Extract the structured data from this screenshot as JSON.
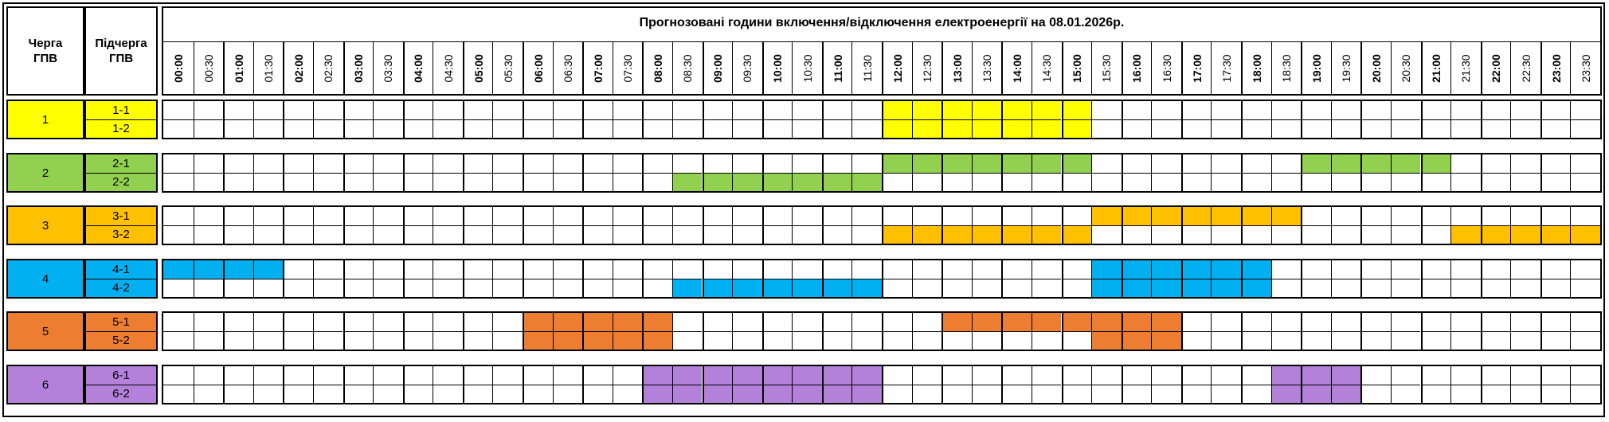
{
  "header": {
    "queue_label": "Черга ГПВ",
    "subqueue_label": "Підчерга ГПВ",
    "title": "Прогнозовані години включення/відключення електроенергії на 08.01.2026р."
  },
  "times": [
    "00:00",
    "00:30",
    "01:00",
    "01:30",
    "02:00",
    "02:30",
    "03:00",
    "03:30",
    "04:00",
    "04:30",
    "05:00",
    "05:30",
    "06:00",
    "06:30",
    "07:00",
    "07:30",
    "08:00",
    "08:30",
    "09:00",
    "09:30",
    "10:00",
    "10:30",
    "11:00",
    "11:30",
    "12:00",
    "12:30",
    "13:00",
    "13:30",
    "14:00",
    "14:30",
    "15:00",
    "15:30",
    "16:00",
    "16:30",
    "17:00",
    "17:30",
    "18:00",
    "18:30",
    "19:00",
    "19:30",
    "20:00",
    "20:30",
    "21:00",
    "21:30",
    "22:00",
    "22:30",
    "23:00",
    "23:30"
  ],
  "groups": [
    {
      "queue": "1",
      "color": "#ffff00",
      "subqueues": [
        {
          "label": "1-1",
          "off_slots": [
            24,
            25,
            26,
            27,
            28,
            29,
            30
          ]
        },
        {
          "label": "1-2",
          "off_slots": [
            24,
            25,
            26,
            27,
            28,
            29,
            30
          ]
        }
      ]
    },
    {
      "queue": "2",
      "color": "#92d050",
      "subqueues": [
        {
          "label": "2-1",
          "off_slots": [
            24,
            25,
            26,
            27,
            28,
            29,
            30,
            38,
            39,
            40,
            41,
            42
          ]
        },
        {
          "label": "2-2",
          "off_slots": [
            17,
            18,
            19,
            20,
            21,
            22,
            23
          ]
        }
      ]
    },
    {
      "queue": "3",
      "color": "#ffc000",
      "subqueues": [
        {
          "label": "3-1",
          "off_slots": [
            31,
            32,
            33,
            34,
            35,
            36,
            37
          ]
        },
        {
          "label": "3-2",
          "off_slots": [
            24,
            25,
            26,
            27,
            28,
            29,
            30,
            43,
            44,
            45,
            46,
            47
          ]
        }
      ]
    },
    {
      "queue": "4",
      "color": "#00b0f0",
      "subqueues": [
        {
          "label": "4-1",
          "off_slots": [
            0,
            1,
            2,
            3,
            31,
            32,
            33,
            34,
            35,
            36
          ]
        },
        {
          "label": "4-2",
          "off_slots": [
            17,
            18,
            19,
            20,
            21,
            22,
            23,
            31,
            32,
            33,
            34,
            35,
            36
          ]
        }
      ]
    },
    {
      "queue": "5",
      "color": "#ed7d31",
      "subqueues": [
        {
          "label": "5-1",
          "off_slots": [
            12,
            13,
            14,
            15,
            16,
            26,
            27,
            28,
            29,
            30,
            31,
            32,
            33
          ]
        },
        {
          "label": "5-2",
          "off_slots": [
            12,
            13,
            14,
            15,
            16,
            31,
            32,
            33
          ]
        }
      ]
    },
    {
      "queue": "6",
      "color": "#b381d9",
      "subqueues": [
        {
          "label": "6-1",
          "off_slots": [
            16,
            17,
            18,
            19,
            20,
            21,
            22,
            23,
            37,
            38,
            39
          ]
        },
        {
          "label": "6-2",
          "off_slots": [
            16,
            17,
            18,
            19,
            20,
            21,
            22,
            23,
            37,
            38,
            39
          ]
        }
      ]
    }
  ]
}
